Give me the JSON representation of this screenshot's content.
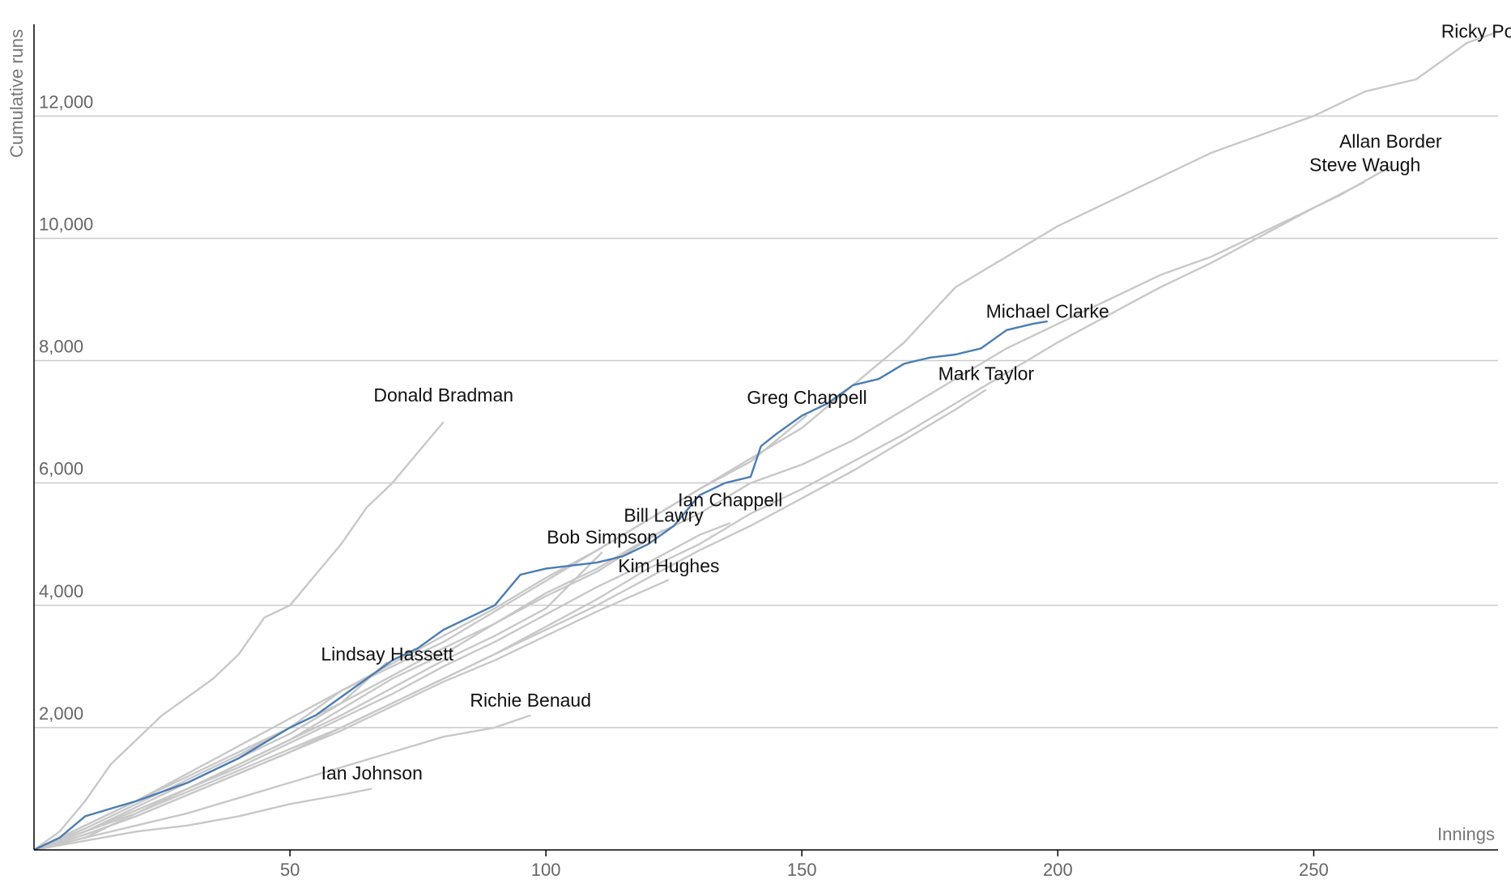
{
  "chart_data": {
    "type": "line",
    "xlabel": "Innings",
    "ylabel": "Cumulative runs",
    "xlim": [
      0,
      286
    ],
    "ylim": [
      0,
      13500
    ],
    "x_ticks": [
      50,
      100,
      150,
      200,
      250
    ],
    "y_ticks": [
      2000,
      4000,
      6000,
      8000,
      10000,
      12000
    ],
    "x_tick_labels": [
      "50",
      "100",
      "150",
      "200",
      "250"
    ],
    "y_tick_labels": [
      "2,000",
      "4,000",
      "6,000",
      "8,000",
      "10,000",
      "12,000"
    ],
    "grid": true,
    "colors": {
      "default": "#c8c8c8",
      "highlight": "#4a7db4"
    },
    "highlight_series": "Michael Clarke",
    "series": [
      {
        "name": "Ricky Ponting",
        "label_at": [
          286,
          13280
        ],
        "points": [
          [
            0,
            0
          ],
          [
            10,
            400
          ],
          [
            20,
            800
          ],
          [
            30,
            1200
          ],
          [
            40,
            1600
          ],
          [
            50,
            2000
          ],
          [
            60,
            2600
          ],
          [
            70,
            3000
          ],
          [
            80,
            3400
          ],
          [
            90,
            3900
          ],
          [
            100,
            4400
          ],
          [
            110,
            4900
          ],
          [
            120,
            5400
          ],
          [
            130,
            5900
          ],
          [
            140,
            6400
          ],
          [
            150,
            6900
          ],
          [
            160,
            7600
          ],
          [
            170,
            8300
          ],
          [
            180,
            9200
          ],
          [
            190,
            9700
          ],
          [
            200,
            10200
          ],
          [
            210,
            10600
          ],
          [
            220,
            11000
          ],
          [
            230,
            11400
          ],
          [
            240,
            11700
          ],
          [
            250,
            12000
          ],
          [
            260,
            12400
          ],
          [
            270,
            12600
          ],
          [
            280,
            13200
          ],
          [
            286,
            13378
          ]
        ]
      },
      {
        "name": "Allan Border",
        "label_at": [
          265,
          11480
        ],
        "points": [
          [
            0,
            0
          ],
          [
            10,
            200
          ],
          [
            20,
            600
          ],
          [
            30,
            1000
          ],
          [
            40,
            1400
          ],
          [
            50,
            1800
          ],
          [
            60,
            2300
          ],
          [
            70,
            2800
          ],
          [
            80,
            3200
          ],
          [
            90,
            3700
          ],
          [
            100,
            4200
          ],
          [
            110,
            4600
          ],
          [
            120,
            5100
          ],
          [
            130,
            5500
          ],
          [
            140,
            6000
          ],
          [
            150,
            6300
          ],
          [
            160,
            6700
          ],
          [
            170,
            7200
          ],
          [
            180,
            7700
          ],
          [
            190,
            8200
          ],
          [
            200,
            8600
          ],
          [
            210,
            9000
          ],
          [
            220,
            9400
          ],
          [
            230,
            9700
          ],
          [
            240,
            10100
          ],
          [
            250,
            10500
          ],
          [
            255,
            10700
          ],
          [
            265,
            11174
          ]
        ]
      },
      {
        "name": "Steve Waugh",
        "label_at": [
          260,
          11100
        ],
        "points": [
          [
            0,
            0
          ],
          [
            10,
            250
          ],
          [
            20,
            550
          ],
          [
            30,
            900
          ],
          [
            40,
            1250
          ],
          [
            50,
            1600
          ],
          [
            60,
            2000
          ],
          [
            70,
            2400
          ],
          [
            80,
            2800
          ],
          [
            90,
            3200
          ],
          [
            100,
            3650
          ],
          [
            110,
            4100
          ],
          [
            120,
            4600
          ],
          [
            130,
            5000
          ],
          [
            140,
            5500
          ],
          [
            150,
            5900
          ],
          [
            160,
            6350
          ],
          [
            170,
            6800
          ],
          [
            180,
            7300
          ],
          [
            190,
            7800
          ],
          [
            200,
            8300
          ],
          [
            210,
            8750
          ],
          [
            220,
            9200
          ],
          [
            230,
            9600
          ],
          [
            240,
            10050
          ],
          [
            250,
            10500
          ],
          [
            260,
            10927
          ]
        ]
      },
      {
        "name": "Michael Clarke",
        "label_at": [
          198,
          8700
        ],
        "points": [
          [
            0,
            0
          ],
          [
            5,
            200
          ],
          [
            10,
            550
          ],
          [
            20,
            800
          ],
          [
            30,
            1100
          ],
          [
            40,
            1500
          ],
          [
            50,
            2000
          ],
          [
            55,
            2200
          ],
          [
            60,
            2500
          ],
          [
            70,
            3100
          ],
          [
            75,
            3300
          ],
          [
            80,
            3600
          ],
          [
            90,
            4000
          ],
          [
            95,
            4500
          ],
          [
            100,
            4600
          ],
          [
            110,
            4700
          ],
          [
            115,
            4800
          ],
          [
            120,
            5000
          ],
          [
            125,
            5300
          ],
          [
            130,
            5800
          ],
          [
            135,
            6000
          ],
          [
            140,
            6100
          ],
          [
            142,
            6600
          ],
          [
            145,
            6800
          ],
          [
            150,
            7100
          ],
          [
            155,
            7300
          ],
          [
            160,
            7600
          ],
          [
            165,
            7700
          ],
          [
            170,
            7950
          ],
          [
            175,
            8050
          ],
          [
            180,
            8100
          ],
          [
            185,
            8200
          ],
          [
            190,
            8500
          ],
          [
            195,
            8600
          ],
          [
            198,
            8643
          ]
        ]
      },
      {
        "name": "Mark Taylor",
        "label_at": [
          186,
          7680
        ],
        "points": [
          [
            0,
            0
          ],
          [
            10,
            300
          ],
          [
            20,
            600
          ],
          [
            30,
            950
          ],
          [
            40,
            1300
          ],
          [
            50,
            1650
          ],
          [
            60,
            2000
          ],
          [
            70,
            2400
          ],
          [
            80,
            2800
          ],
          [
            90,
            3200
          ],
          [
            100,
            3600
          ],
          [
            110,
            4000
          ],
          [
            120,
            4450
          ],
          [
            130,
            4900
          ],
          [
            140,
            5300
          ],
          [
            150,
            5750
          ],
          [
            160,
            6200
          ],
          [
            170,
            6700
          ],
          [
            180,
            7200
          ],
          [
            186,
            7525
          ]
        ]
      },
      {
        "name": "Greg Chappell",
        "label_at": [
          151,
          7290
        ],
        "points": [
          [
            0,
            0
          ],
          [
            10,
            400
          ],
          [
            20,
            800
          ],
          [
            30,
            1250
          ],
          [
            40,
            1700
          ],
          [
            50,
            2150
          ],
          [
            60,
            2600
          ],
          [
            70,
            3050
          ],
          [
            80,
            3500
          ],
          [
            90,
            3950
          ],
          [
            100,
            4450
          ],
          [
            110,
            4900
          ],
          [
            120,
            5400
          ],
          [
            130,
            5900
          ],
          [
            140,
            6350
          ],
          [
            151,
            7110
          ]
        ]
      },
      {
        "name": "Ian Chappell",
        "label_at": [
          136,
          5620
        ],
        "points": [
          [
            0,
            0
          ],
          [
            10,
            300
          ],
          [
            20,
            650
          ],
          [
            30,
            1000
          ],
          [
            40,
            1350
          ],
          [
            50,
            1750
          ],
          [
            60,
            2150
          ],
          [
            70,
            2550
          ],
          [
            80,
            3000
          ],
          [
            90,
            3400
          ],
          [
            100,
            3850
          ],
          [
            110,
            4300
          ],
          [
            120,
            4700
          ],
          [
            130,
            5150
          ],
          [
            136,
            5345
          ]
        ]
      },
      {
        "name": "Bill Lawry",
        "label_at": [
          123,
          5370
        ],
        "points": [
          [
            0,
            0
          ],
          [
            10,
            350
          ],
          [
            20,
            750
          ],
          [
            30,
            1150
          ],
          [
            40,
            1550
          ],
          [
            50,
            2000
          ],
          [
            60,
            2400
          ],
          [
            70,
            2850
          ],
          [
            80,
            3300
          ],
          [
            90,
            3700
          ],
          [
            100,
            4150
          ],
          [
            110,
            4550
          ],
          [
            123,
            5234
          ]
        ]
      },
      {
        "name": "Bob Simpson",
        "label_at": [
          111,
          5010
        ],
        "points": [
          [
            0,
            0
          ],
          [
            10,
            300
          ],
          [
            20,
            650
          ],
          [
            30,
            1000
          ],
          [
            40,
            1400
          ],
          [
            50,
            1800
          ],
          [
            60,
            2200
          ],
          [
            70,
            2650
          ],
          [
            80,
            3100
          ],
          [
            90,
            3500
          ],
          [
            100,
            3950
          ],
          [
            111,
            4869
          ]
        ]
      },
      {
        "name": "Kim Hughes",
        "label_at": [
          124,
          4540
        ],
        "points": [
          [
            0,
            0
          ],
          [
            10,
            250
          ],
          [
            20,
            550
          ],
          [
            30,
            900
          ],
          [
            40,
            1250
          ],
          [
            50,
            1600
          ],
          [
            60,
            1950
          ],
          [
            70,
            2350
          ],
          [
            80,
            2750
          ],
          [
            90,
            3100
          ],
          [
            100,
            3500
          ],
          [
            110,
            3900
          ],
          [
            124,
            4415
          ]
        ]
      },
      {
        "name": "Donald Bradman",
        "label_at": [
          80,
          7330
        ],
        "points": [
          [
            0,
            0
          ],
          [
            5,
            300
          ],
          [
            10,
            800
          ],
          [
            15,
            1400
          ],
          [
            20,
            1800
          ],
          [
            25,
            2200
          ],
          [
            30,
            2500
          ],
          [
            35,
            2800
          ],
          [
            40,
            3200
          ],
          [
            45,
            3800
          ],
          [
            50,
            4000
          ],
          [
            55,
            4500
          ],
          [
            60,
            5000
          ],
          [
            65,
            5600
          ],
          [
            70,
            6000
          ],
          [
            75,
            6500
          ],
          [
            80,
            6996
          ]
        ]
      },
      {
        "name": "Lindsay Hassett",
        "label_at": [
          69,
          3100
        ],
        "points": [
          [
            0,
            0
          ],
          [
            10,
            300
          ],
          [
            20,
            700
          ],
          [
            30,
            1100
          ],
          [
            40,
            1500
          ],
          [
            50,
            1900
          ],
          [
            60,
            2400
          ],
          [
            69,
            3073
          ]
        ]
      },
      {
        "name": "Richie Benaud",
        "label_at": [
          97,
          2340
        ],
        "points": [
          [
            0,
            0
          ],
          [
            10,
            200
          ],
          [
            20,
            400
          ],
          [
            30,
            600
          ],
          [
            40,
            850
          ],
          [
            50,
            1100
          ],
          [
            60,
            1350
          ],
          [
            70,
            1600
          ],
          [
            80,
            1850
          ],
          [
            90,
            2000
          ],
          [
            97,
            2201
          ]
        ]
      },
      {
        "name": "Ian Johnson",
        "label_at": [
          66,
          1150
        ],
        "points": [
          [
            0,
            0
          ],
          [
            10,
            150
          ],
          [
            20,
            300
          ],
          [
            30,
            400
          ],
          [
            40,
            550
          ],
          [
            50,
            750
          ],
          [
            60,
            900
          ],
          [
            66,
            1000
          ]
        ]
      }
    ]
  }
}
